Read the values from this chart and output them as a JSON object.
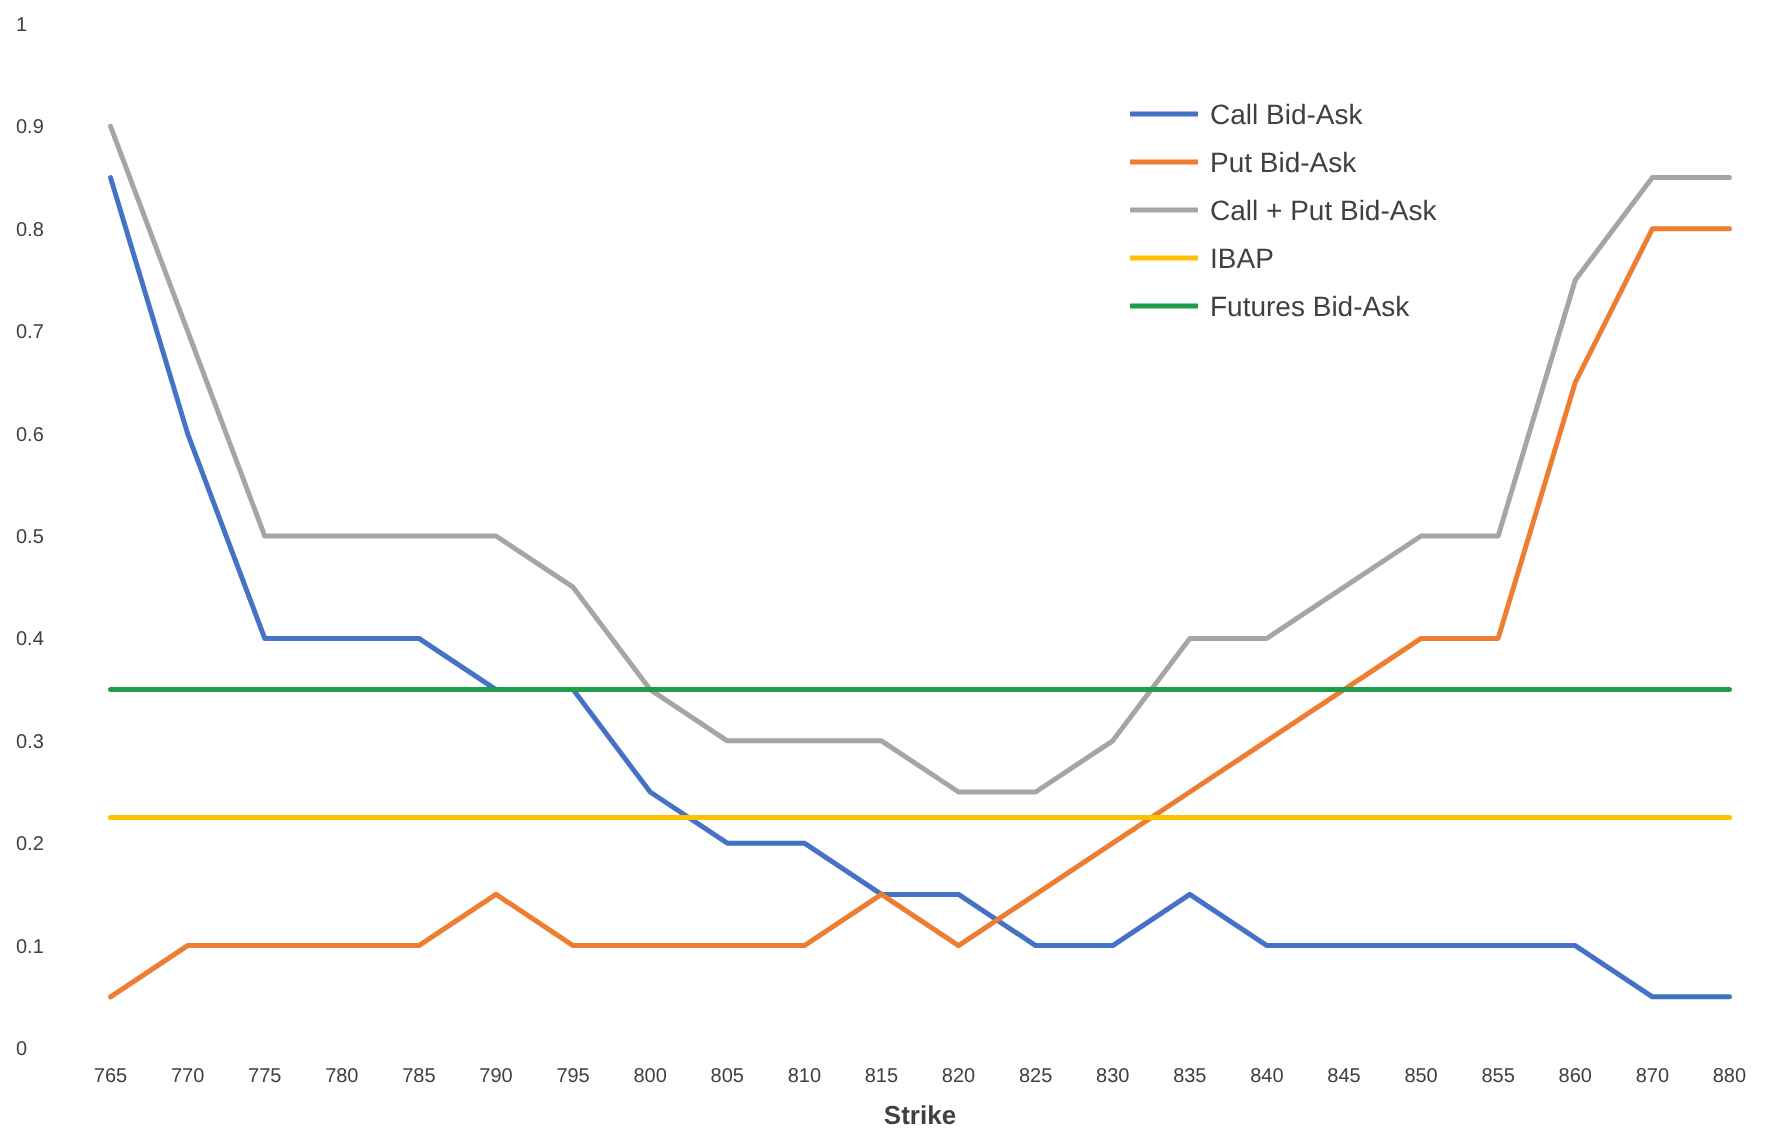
{
  "chart_data": {
    "type": "line",
    "xlabel": "Strike",
    "categories": [
      "765",
      "770",
      "775",
      "780",
      "785",
      "790",
      "795",
      "800",
      "805",
      "810",
      "815",
      "820",
      "825",
      "830",
      "835",
      "840",
      "845",
      "850",
      "855",
      "860",
      "870",
      "880"
    ],
    "series": [
      {
        "name": "Call Bid-Ask",
        "color": "#4472c4",
        "values": [
          0.85,
          0.6,
          0.4,
          0.4,
          0.4,
          0.35,
          0.35,
          0.25,
          0.2,
          0.2,
          0.15,
          0.15,
          0.1,
          0.1,
          0.15,
          0.1,
          0.1,
          0.1,
          0.1,
          0.1,
          0.05,
          0.05
        ]
      },
      {
        "name": "Put Bid-Ask",
        "color": "#ed7d31",
        "values": [
          0.05,
          0.1,
          0.1,
          0.1,
          0.1,
          0.15,
          0.1,
          0.1,
          0.1,
          0.1,
          0.15,
          0.1,
          0.15,
          0.2,
          0.25,
          0.3,
          0.35,
          0.4,
          0.4,
          0.65,
          0.8,
          0.8
        ]
      },
      {
        "name": "Call + Put Bid-Ask",
        "color": "#a5a5a5",
        "values": [
          0.9,
          0.7,
          0.5,
          0.5,
          0.5,
          0.5,
          0.45,
          0.35,
          0.3,
          0.3,
          0.3,
          0.25,
          0.25,
          0.3,
          0.4,
          0.4,
          0.45,
          0.5,
          0.5,
          0.75,
          0.85,
          0.85
        ]
      },
      {
        "name": "IBAP",
        "color": "#ffc000",
        "values": [
          0.225,
          0.225,
          0.225,
          0.225,
          0.225,
          0.225,
          0.225,
          0.225,
          0.225,
          0.225,
          0.225,
          0.225,
          0.225,
          0.225,
          0.225,
          0.225,
          0.225,
          0.225,
          0.225,
          0.225,
          0.225,
          0.225
        ]
      },
      {
        "name": "Futures Bid-Ask",
        "color": "#1e9e48",
        "values": [
          0.35,
          0.35,
          0.35,
          0.35,
          0.35,
          0.35,
          0.35,
          0.35,
          0.35,
          0.35,
          0.35,
          0.35,
          0.35,
          0.35,
          0.35,
          0.35,
          0.35,
          0.35,
          0.35,
          0.35,
          0.35,
          0.35
        ]
      }
    ],
    "ylim": [
      0,
      1
    ],
    "yticks": [
      0,
      0.1,
      0.2,
      0.3,
      0.4,
      0.5,
      0.6,
      0.7,
      0.8,
      0.9,
      1
    ],
    "grid": false,
    "legend": "top right",
    "marker": "none",
    "line_style": "solid"
  }
}
